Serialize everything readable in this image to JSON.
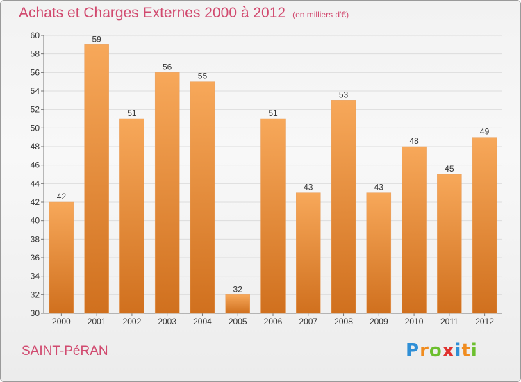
{
  "header": {
    "title": "Achats et Charges Externes 2000 à 2012",
    "subtitle": "(en milliers d'€)"
  },
  "footer": {
    "place": "SAINT-PéRAN",
    "logo_letters": [
      "P",
      "r",
      "o",
      "x",
      "i",
      "t",
      "i"
    ],
    "logo_colors": [
      "#2f8fd6",
      "#f08c1f",
      "#6cbf2e",
      "#e0322f",
      "#2f8fd6",
      "#f08c1f",
      "#6cbf2e"
    ]
  },
  "colors": {
    "bar_light": "#f7a85a",
    "bar_dark": "#d0701e",
    "title": "#d14a6f"
  },
  "chart_data": {
    "type": "bar",
    "title": "Achats et Charges Externes 2000 à 2012",
    "subtitle": "(en milliers d'€)",
    "xlabel": "",
    "ylabel": "",
    "categories": [
      "2000",
      "2001",
      "2002",
      "2003",
      "2004",
      "2005",
      "2006",
      "2007",
      "2008",
      "2009",
      "2010",
      "2011",
      "2012"
    ],
    "values": [
      42,
      59,
      51,
      56,
      55,
      32,
      51,
      43,
      53,
      43,
      48,
      45,
      49
    ],
    "ylim": [
      30,
      60
    ],
    "yticks": [
      30,
      32,
      34,
      36,
      38,
      40,
      42,
      44,
      46,
      48,
      50,
      52,
      54,
      56,
      58,
      60
    ],
    "grid": true,
    "legend": "none"
  }
}
